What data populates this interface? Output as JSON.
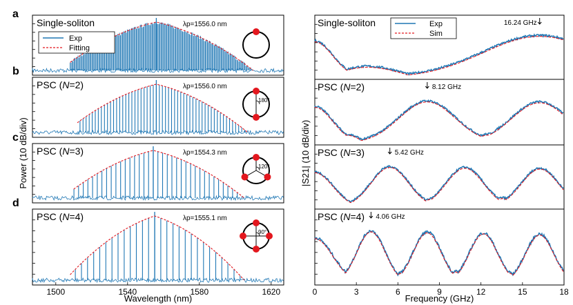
{
  "chart_data": [
    {
      "type": "line",
      "panel_group": "optical-spectra",
      "xlabel": "Wavelength (nm)",
      "ylabel": "Power (10 dB/div)",
      "xlim": [
        1487,
        1627
      ],
      "xticks": [
        1500,
        1540,
        1580,
        1620
      ],
      "legend": {
        "position": "top-left",
        "entries": [
          "Exp",
          "Fitting"
        ]
      },
      "panels": [
        {
          "letter": "a",
          "title": "Single-soliton",
          "title_parts": [
            "Single-soliton"
          ],
          "pump": "λp=1556.0 nm",
          "n": 1,
          "range": [
            1508,
            1610
          ],
          "center": 1556,
          "spacing": 0.13,
          "angle_label": ""
        },
        {
          "letter": "b",
          "title": "PSC (N=2)",
          "title_parts": [
            "PSC (",
            "N",
            "=2)"
          ],
          "pump": "λp=1556.0 nm",
          "n": 2,
          "range": [
            1512,
            1607
          ],
          "center": 1556,
          "spacing": 1.7,
          "angle_label": "180°"
        },
        {
          "letter": "c",
          "title": "PSC (N=3)",
          "title_parts": [
            "PSC (",
            "N",
            "=3)"
          ],
          "pump": "λp=1554.3 nm",
          "n": 3,
          "range": [
            1510,
            1605
          ],
          "center": 1554.3,
          "spacing": 2.6,
          "angle_label": "120°"
        },
        {
          "letter": "d",
          "title": "PSC (N=4)",
          "title_parts": [
            "PSC (",
            "N",
            "=4)"
          ],
          "pump": "λp=1555.1 nm",
          "n": 4,
          "range": [
            1508,
            1605
          ],
          "center": 1555.1,
          "spacing": 3.4,
          "angle_label": "90°"
        }
      ],
      "series": [
        {
          "name": "Exp",
          "color": "#1f77b4"
        },
        {
          "name": "Fitting",
          "color": "#e3171e"
        }
      ]
    },
    {
      "type": "line",
      "panel_group": "rf-response",
      "xlabel": "Frequency (GHz)",
      "ylabel": "|S21| (10 dB/div)",
      "xlim": [
        0,
        18
      ],
      "xticks": [
        0,
        3,
        6,
        9,
        12,
        15,
        18
      ],
      "legend": {
        "position": "top-center",
        "entries": [
          "Exp",
          "Sim"
        ]
      },
      "panels": [
        {
          "title": "Single-soliton",
          "title_parts": [
            "Single-soliton"
          ],
          "fsr_ghz": 16.24,
          "annotation": "16.24 GHz"
        },
        {
          "title": "PSC (N=2)",
          "title_parts": [
            "PSC (",
            "N",
            "=2)"
          ],
          "fsr_ghz": 8.12,
          "annotation": "8.12 GHz"
        },
        {
          "title": "PSC (N=3)",
          "title_parts": [
            "PSC (",
            "N",
            "=3)"
          ],
          "fsr_ghz": 5.42,
          "annotation": "5.42 GHz"
        },
        {
          "title": "PSC (N=4)",
          "title_parts": [
            "PSC (",
            "N",
            "=4)"
          ],
          "fsr_ghz": 4.06,
          "annotation": "4.06 GHz"
        }
      ],
      "series": [
        {
          "name": "Exp",
          "color": "#1f77b4"
        },
        {
          "name": "Sim",
          "color": "#e3171e"
        }
      ]
    }
  ]
}
